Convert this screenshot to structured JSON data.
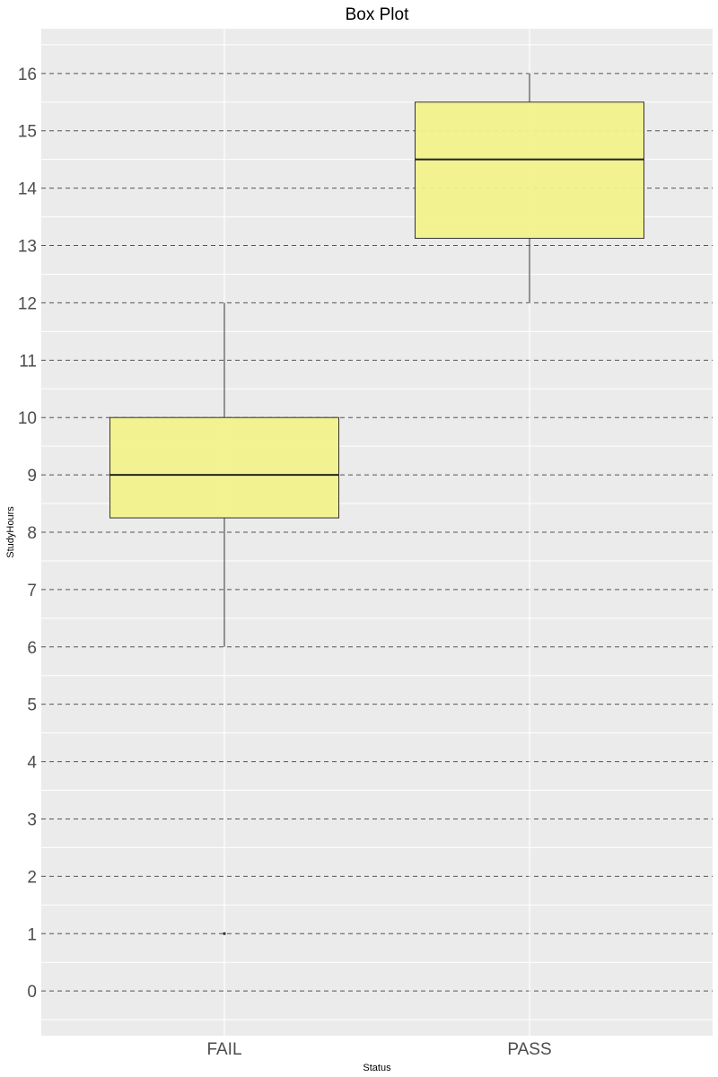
{
  "chart_data": {
    "type": "box",
    "title": "Box Plot",
    "xlabel": "Status",
    "ylabel": "StudyHours",
    "categories": [
      "FAIL",
      "PASS"
    ],
    "yticks": [
      0,
      1,
      2,
      3,
      4,
      5,
      6,
      7,
      8,
      9,
      10,
      11,
      12,
      13,
      14,
      15,
      16
    ],
    "ylim": [
      -0.78,
      16.78
    ],
    "boxes": [
      {
        "category": "FAIL",
        "whisker_low": 6,
        "q1": 8.25,
        "median": 9,
        "q3": 10,
        "whisker_high": 12,
        "outliers": [
          1
        ]
      },
      {
        "category": "PASS",
        "whisker_low": 12,
        "q1": 13.125,
        "median": 14.5,
        "q3": 15.5,
        "whisker_high": 16,
        "outliers": []
      }
    ],
    "grid": true,
    "major_grid_style": "dashed",
    "colors": {
      "panel": "#ebebeb",
      "box_fill": "#f2f28c",
      "box_stroke": "#333333",
      "grid": "#ffffff",
      "major_dash": "#555555"
    }
  }
}
